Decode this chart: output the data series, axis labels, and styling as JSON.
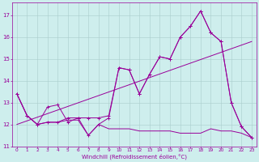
{
  "xlabel": "Windchill (Refroidissement éolien,°C)",
  "background_color": "#ceeeed",
  "grid_color": "#aacccc",
  "line_color": "#990099",
  "xlim": [
    -0.5,
    23.5
  ],
  "ylim": [
    11.0,
    17.6
  ],
  "yticks": [
    11,
    12,
    13,
    14,
    15,
    16,
    17
  ],
  "xticks": [
    0,
    1,
    2,
    3,
    4,
    5,
    6,
    7,
    8,
    9,
    10,
    11,
    12,
    13,
    14,
    15,
    16,
    17,
    18,
    19,
    20,
    21,
    22,
    23
  ],
  "series1_x": [
    0,
    1,
    2,
    3,
    4,
    5,
    6,
    7,
    8,
    9,
    10,
    11,
    12,
    13,
    14,
    15,
    16,
    17,
    18,
    19,
    20,
    21,
    22,
    23
  ],
  "series1_y": [
    13.4,
    12.4,
    12.0,
    12.1,
    12.1,
    12.3,
    12.3,
    11.5,
    12.0,
    12.3,
    14.6,
    14.5,
    13.4,
    14.3,
    15.1,
    15.0,
    16.0,
    16.5,
    17.2,
    16.2,
    15.8,
    13.0,
    11.9,
    11.4
  ],
  "series2_x": [
    0,
    1,
    2,
    3,
    4,
    5,
    6,
    7,
    8,
    9,
    10,
    11,
    12,
    13,
    14,
    15,
    16,
    17,
    18,
    19,
    20,
    21,
    22,
    23
  ],
  "series2_y": [
    13.4,
    12.4,
    12.0,
    12.8,
    12.9,
    12.1,
    12.3,
    12.3,
    12.3,
    12.4,
    14.6,
    14.5,
    13.4,
    14.3,
    15.1,
    15.0,
    16.0,
    16.5,
    17.2,
    16.2,
    15.8,
    13.0,
    11.9,
    11.4
  ],
  "series3_x": [
    0,
    1,
    2,
    3,
    4,
    5,
    6,
    7,
    8,
    9,
    10,
    11,
    12,
    13,
    14,
    15,
    16,
    17,
    18,
    19,
    20,
    21,
    22,
    23
  ],
  "series3_y": [
    13.4,
    12.4,
    12.0,
    12.1,
    12.1,
    12.2,
    12.2,
    11.5,
    12.0,
    11.8,
    11.8,
    11.8,
    11.7,
    11.7,
    11.7,
    11.7,
    11.6,
    11.6,
    11.6,
    11.8,
    11.7,
    11.7,
    11.6,
    11.4
  ]
}
